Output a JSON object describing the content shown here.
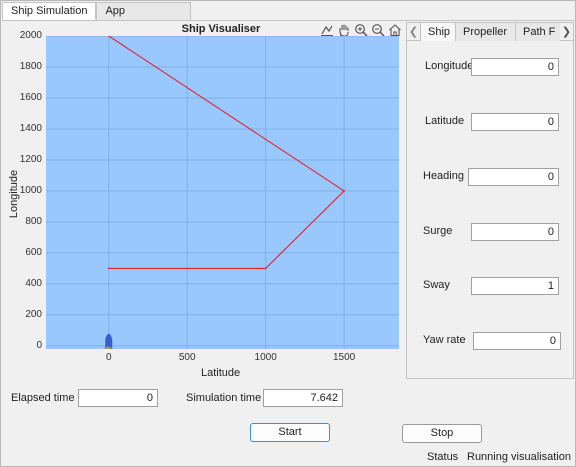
{
  "tabs": [
    "Ship Simulation",
    "App Description"
  ],
  "plot": {
    "title": "Ship Visualiser",
    "xlabel": "Latitude",
    "ylabel": "Longitude",
    "yticks": [
      "2000",
      "1800",
      "1600",
      "1400",
      "1200",
      "1000",
      "800",
      "600",
      "400",
      "200",
      "0"
    ],
    "xticks": [
      "0",
      "500",
      "1000",
      "1500"
    ],
    "background_color": "#99c8ff",
    "path_color": "#e8202a",
    "toolbar_icons": [
      "data-tips-icon",
      "pan-hand-icon",
      "zoom-in-icon",
      "zoom-out-icon",
      "home-icon"
    ]
  },
  "chart_data": {
    "type": "line",
    "title": "Ship Visualiser",
    "xlabel": "Latitude",
    "ylabel": "Longitude",
    "xlim": [
      -400,
      1850
    ],
    "ylim": [
      -20,
      2000
    ],
    "grid": true,
    "series": [
      {
        "x": [
          0,
          1500,
          1000,
          0
        ],
        "y": [
          2000,
          1000,
          500,
          500
        ]
      }
    ],
    "ship_marker": {
      "x": 0,
      "y": 20
    }
  },
  "side": {
    "tabs": [
      "Ship",
      "Propeller",
      "Path F"
    ],
    "fields": [
      {
        "label": "Longitude",
        "value": "0"
      },
      {
        "label": "Latitude",
        "value": "0"
      },
      {
        "label": "Heading",
        "value": "0"
      },
      {
        "label": "Surge",
        "value": "0"
      },
      {
        "label": "Sway",
        "value": "1"
      },
      {
        "label": "Yaw rate",
        "value": "0"
      }
    ]
  },
  "bottom": {
    "elapsed_label": "Elapsed time",
    "elapsed_value": "0",
    "sim_label": "Simulation time",
    "sim_value": "7.642",
    "start_label": "Start",
    "stop_label": "Stop",
    "status_label": "Status",
    "status_value": "Running visualisation"
  }
}
